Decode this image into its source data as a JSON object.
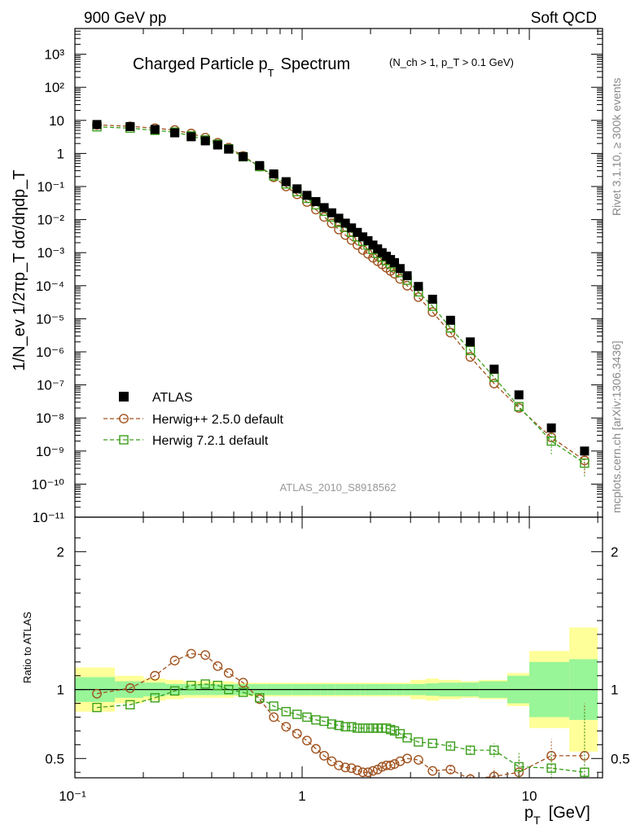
{
  "header": {
    "left": "900 GeV pp",
    "right": "Soft QCD"
  },
  "watermark": "ATLAS_2010_S8918562",
  "side_text": {
    "top": "Rivet 3.1.10, ≥ 300k events",
    "bottom": "mcplots.cern.ch [arXiv:1306.3436]"
  },
  "colors": {
    "data": "#000000",
    "herwig25": "#a0521e",
    "herwig72": "#3a9e1a",
    "band_inner": "#98f598",
    "band_outer": "#ffff99"
  },
  "chart_data": [
    {
      "type": "scatter",
      "title": "Charged Particle p_T Spectrum",
      "title_main": "Charged Particle p",
      "title_sub": "T",
      "title_tail": "Spectrum",
      "title_cond": "(N_ch > 1, p_T > 0.1 GeV)",
      "ylabel": "1/N_ev 1/2πp_T dσ/dηdp_T",
      "xscale": "log",
      "yscale": "log",
      "xlim": [
        0.1,
        21
      ],
      "ylim": [
        1e-11,
        6000
      ],
      "x_tick_labels": [
        "10⁻¹",
        "1",
        "10"
      ],
      "y_tick_labels": [
        "10⁻¹¹",
        "10⁻¹⁰",
        "10⁻⁹",
        "10⁻⁸",
        "10⁻⁷",
        "10⁻⁶",
        "10⁻⁵",
        "10⁻⁴",
        "10⁻³",
        "10⁻²",
        "10⁻¹",
        "1",
        "10",
        "10²",
        "10³"
      ],
      "legend": [
        "ATLAS",
        "Herwig++ 2.5.0 default",
        "Herwig 7.2.1 default"
      ],
      "legend_position": "bottom-left",
      "x": [
        0.125,
        0.175,
        0.225,
        0.275,
        0.325,
        0.375,
        0.425,
        0.475,
        0.55,
        0.65,
        0.75,
        0.85,
        0.95,
        1.05,
        1.15,
        1.25,
        1.35,
        1.45,
        1.55,
        1.65,
        1.75,
        1.85,
        1.95,
        2.05,
        2.15,
        2.25,
        2.35,
        2.45,
        2.55,
        2.7,
        2.9,
        3.25,
        3.75,
        4.5,
        5.5,
        7.0,
        9.0,
        12.5,
        17.5
      ],
      "series": [
        {
          "name": "ATLAS",
          "values": [
            7.5,
            6.5,
            5.3,
            4.2,
            3.2,
            2.4,
            1.8,
            1.35,
            0.8,
            0.43,
            0.24,
            0.14,
            0.085,
            0.054,
            0.035,
            0.023,
            0.016,
            0.011,
            0.0078,
            0.0056,
            0.0041,
            0.003,
            0.0023,
            0.0017,
            0.0013,
            0.001,
            0.00078,
            0.00062,
            0.0005,
            0.00033,
            0.0002,
            9.5e-05,
            3.9e-05,
            9e-06,
            2e-06,
            3e-07,
            5e-08,
            5e-09,
            1e-09
          ]
        },
        {
          "name": "Herwig++ 2.5.0 default",
          "values": [
            7.3,
            6.6,
            5.8,
            5.1,
            4.0,
            3.0,
            2.1,
            1.5,
            0.84,
            0.4,
            0.19,
            0.1,
            0.058,
            0.034,
            0.02,
            0.012,
            0.0077,
            0.005,
            0.0034,
            0.0024,
            0.0017,
            0.0012,
            0.00092,
            0.0007,
            0.00055,
            0.00044,
            0.00035,
            0.00028,
            0.00023,
            0.00016,
            0.0001,
            4.5e-05,
            1.6e-05,
            3.8e-06,
            7e-07,
            1.1e-07,
            2e-08,
            2.6e-09,
            5.2e-10
          ]
        },
        {
          "name": "Herwig 7.2.1 default",
          "values": [
            6.4,
            5.8,
            5.0,
            4.4,
            3.4,
            2.55,
            1.9,
            1.38,
            0.79,
            0.4,
            0.21,
            0.12,
            0.07,
            0.044,
            0.028,
            0.018,
            0.012,
            0.0082,
            0.0058,
            0.0041,
            0.003,
            0.0022,
            0.0017,
            0.00125,
            0.00095,
            0.00073,
            0.00057,
            0.00046,
            0.00037,
            0.00025,
            0.000146,
            6.5e-05,
            2.4e-05,
            5.3e-06,
            1.1e-06,
            1.7e-07,
            2.2e-08,
            2e-09,
            4.3e-10
          ]
        }
      ]
    },
    {
      "type": "line",
      "title": "Ratio to ATLAS",
      "ylabel": "Ratio to ATLAS",
      "xlabel": "p_T [GeV]",
      "xlabel_main": "p",
      "xlabel_sub": "T",
      "xlabel_unit": "[GeV]",
      "xscale": "log",
      "xlim": [
        0.1,
        21
      ],
      "ylim": [
        0.36,
        2.25
      ],
      "y_tick_labels": [
        "0.5",
        "1",
        "2"
      ],
      "reference_line": 1,
      "x": [
        0.125,
        0.175,
        0.225,
        0.275,
        0.325,
        0.375,
        0.425,
        0.475,
        0.55,
        0.65,
        0.75,
        0.85,
        0.95,
        1.05,
        1.15,
        1.25,
        1.35,
        1.45,
        1.55,
        1.65,
        1.75,
        1.85,
        1.95,
        2.05,
        2.15,
        2.25,
        2.35,
        2.45,
        2.55,
        2.7,
        2.9,
        3.25,
        3.75,
        4.5,
        5.5,
        7.0,
        9.0,
        12.5,
        17.5
      ],
      "series": [
        {
          "name": "Herwig++ 2.5.0 default",
          "values": [
            0.97,
            1.01,
            1.1,
            1.21,
            1.26,
            1.25,
            1.17,
            1.12,
            1.05,
            0.93,
            0.8,
            0.73,
            0.68,
            0.63,
            0.57,
            0.52,
            0.48,
            0.45,
            0.435,
            0.43,
            0.415,
            0.4,
            0.4,
            0.41,
            0.42,
            0.44,
            0.45,
            0.45,
            0.46,
            0.48,
            0.5,
            0.49,
            0.41,
            0.42,
            0.35,
            0.37,
            0.4,
            0.52,
            0.52
          ],
          "errors": [
            0.005,
            0.005,
            0.005,
            0.005,
            0.005,
            0.005,
            0.005,
            0.005,
            0.006,
            0.007,
            0.008,
            0.009,
            0.01,
            0.01,
            0.01,
            0.01,
            0.01,
            0.01,
            0.01,
            0.01,
            0.01,
            0.01,
            0.01,
            0.01,
            0.01,
            0.01,
            0.01,
            0.01,
            0.01,
            0.01,
            0.01,
            0.012,
            0.015,
            0.03,
            0.04,
            0.06,
            0.11,
            0.12,
            0.38
          ]
        },
        {
          "name": "Herwig 7.2.1 default",
          "values": [
            0.87,
            0.89,
            0.94,
            0.99,
            1.03,
            1.04,
            1.03,
            1.0,
            0.98,
            0.94,
            0.88,
            0.84,
            0.82,
            0.8,
            0.78,
            0.77,
            0.75,
            0.74,
            0.73,
            0.73,
            0.72,
            0.72,
            0.72,
            0.72,
            0.72,
            0.72,
            0.72,
            0.71,
            0.7,
            0.68,
            0.65,
            0.62,
            0.61,
            0.59,
            0.56,
            0.56,
            0.44,
            0.43,
            0.4
          ],
          "errors": [
            0.005,
            0.005,
            0.005,
            0.005,
            0.005,
            0.005,
            0.005,
            0.005,
            0.006,
            0.007,
            0.008,
            0.009,
            0.01,
            0.01,
            0.01,
            0.01,
            0.01,
            0.01,
            0.01,
            0.01,
            0.01,
            0.01,
            0.01,
            0.01,
            0.01,
            0.01,
            0.01,
            0.01,
            0.01,
            0.01,
            0.01,
            0.012,
            0.015,
            0.02,
            0.03,
            0.05,
            0.1,
            0.12,
            0.45
          ]
        }
      ],
      "band_bins": [
        0.1,
        0.15,
        0.2,
        0.25,
        0.3,
        0.35,
        0.4,
        0.45,
        0.5,
        0.6,
        0.7,
        0.8,
        0.9,
        1.0,
        1.1,
        1.2,
        1.3,
        1.4,
        1.5,
        1.6,
        1.7,
        1.8,
        1.9,
        2.0,
        2.1,
        2.2,
        2.3,
        2.4,
        2.5,
        2.6,
        2.8,
        3.0,
        3.5,
        4.0,
        5.0,
        6.0,
        8.0,
        10.0,
        15.0,
        20.0
      ],
      "band_inner_err": [
        0.09,
        0.06,
        0.05,
        0.04,
        0.04,
        0.04,
        0.04,
        0.04,
        0.04,
        0.04,
        0.04,
        0.04,
        0.04,
        0.04,
        0.04,
        0.04,
        0.04,
        0.04,
        0.04,
        0.04,
        0.04,
        0.04,
        0.04,
        0.04,
        0.04,
        0.04,
        0.04,
        0.04,
        0.04,
        0.04,
        0.04,
        0.04,
        0.045,
        0.05,
        0.05,
        0.06,
        0.1,
        0.2,
        0.22
      ],
      "band_outer_err": [
        0.16,
        0.1,
        0.08,
        0.07,
        0.06,
        0.06,
        0.06,
        0.06,
        0.05,
        0.05,
        0.05,
        0.05,
        0.05,
        0.05,
        0.05,
        0.05,
        0.05,
        0.05,
        0.05,
        0.05,
        0.05,
        0.05,
        0.05,
        0.05,
        0.05,
        0.05,
        0.05,
        0.05,
        0.05,
        0.05,
        0.05,
        0.07,
        0.08,
        0.07,
        0.06,
        0.07,
        0.12,
        0.28,
        0.45
      ]
    }
  ]
}
